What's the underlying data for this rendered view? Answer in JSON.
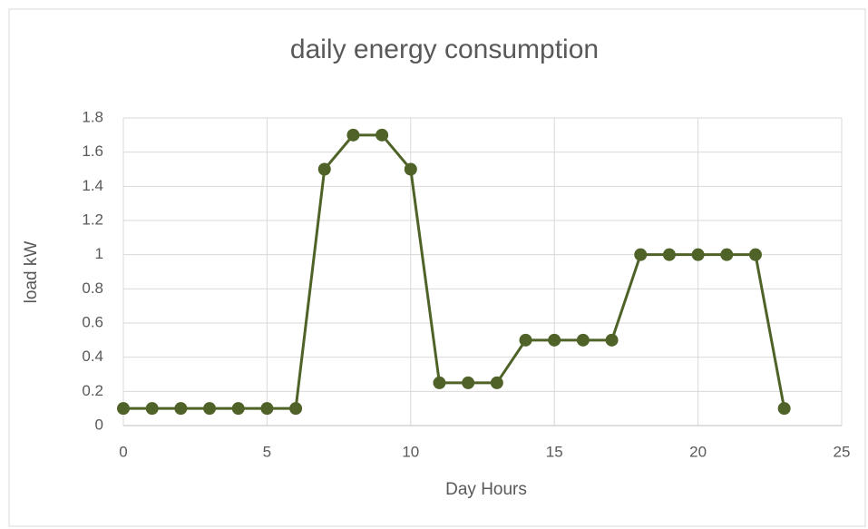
{
  "chart_data": {
    "type": "line",
    "title": "daily energy consumption",
    "x_label": "Day Hours",
    "y_label": "load kW",
    "x": [
      0,
      1,
      2,
      3,
      4,
      5,
      6,
      7,
      8,
      9,
      10,
      11,
      12,
      13,
      14,
      15,
      16,
      17,
      18,
      19,
      20,
      21,
      22,
      23
    ],
    "series": [
      {
        "color": "#4f6228",
        "values": [
          0.1,
          0.1,
          0.1,
          0.1,
          0.1,
          0.1,
          0.1,
          1.5,
          1.7,
          1.7,
          1.5,
          0.25,
          0.25,
          0.25,
          0.5,
          0.5,
          0.5,
          0.5,
          1,
          1,
          1,
          1,
          1,
          0.1
        ]
      }
    ],
    "xlim": [
      0,
      25
    ],
    "xticks": [
      0,
      5,
      10,
      15,
      20,
      25
    ],
    "ylim": [
      0,
      1.8
    ],
    "yticks": [
      0,
      0.2,
      0.4,
      0.6,
      0.8,
      1,
      1.2,
      1.4,
      1.6,
      1.8
    ],
    "grid": true
  }
}
